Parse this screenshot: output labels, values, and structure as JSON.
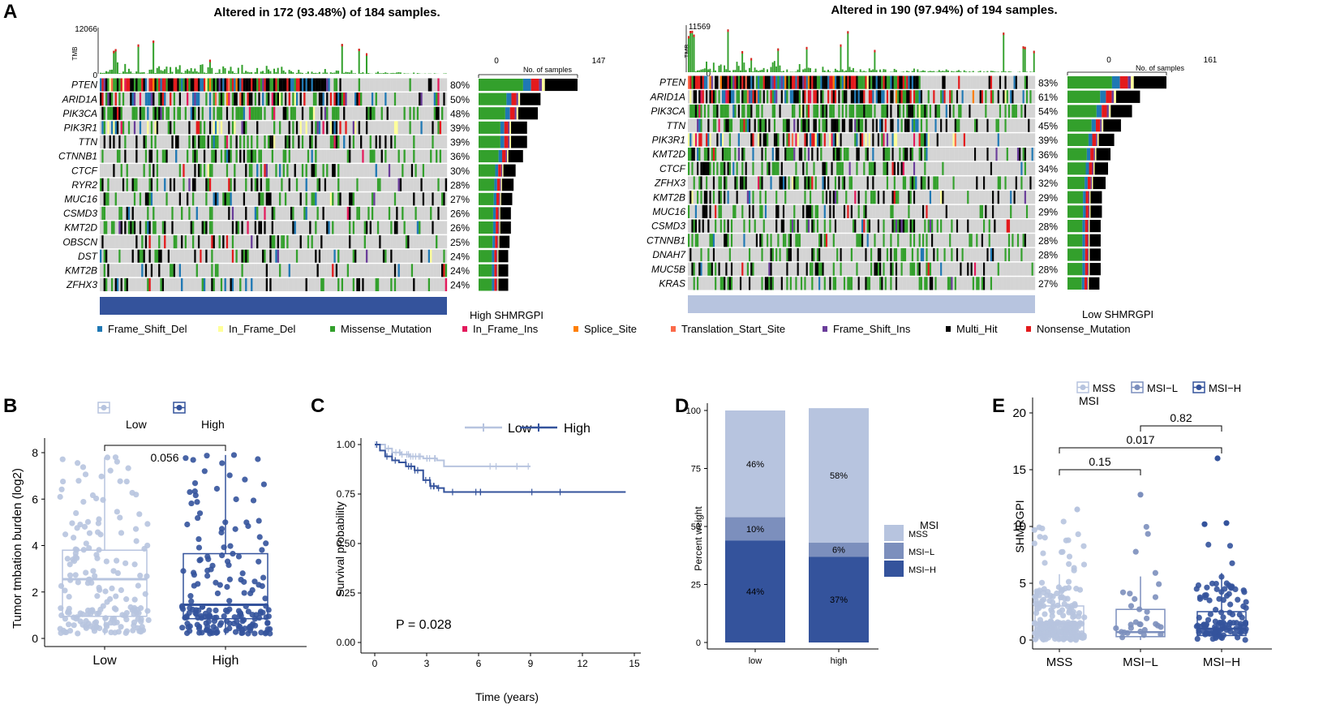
{
  "colors": {
    "Frame_Shift_Del": "#1f78b4",
    "In_Frame_Del": "#ffff99",
    "Missense_Mutation": "#33a02c",
    "In_Frame_Ins": "#e31a5c",
    "Splice_Site": "#ff7f00",
    "Translation_Start_Site": "#fb6a4a",
    "Frame_Shift_Ins": "#6a3d9a",
    "Multi_Hit": "#000000",
    "Nonsense_Mutation": "#e31a1c",
    "low": "#b7c4df",
    "mid": "#7c8fbd",
    "high": "#34539c",
    "oncobg": "#d4d4d4"
  },
  "figure_labels": {
    "A": "A",
    "B": "B",
    "C": "C",
    "D": "D",
    "E": "E"
  },
  "legend_A": [
    "Frame_Shift_Del",
    "In_Frame_Del",
    "Missense_Mutation",
    "In_Frame_Ins",
    "Splice_Site",
    "Translation_Start_Site",
    "Frame_Shift_Ins",
    "Multi_Hit",
    "Nonsense_Mutation"
  ],
  "chart_data": [
    {
      "type": "oncoplot",
      "id": "A-left",
      "title": "Altered in 172 (93.48%) of 184 samples.",
      "tmb_label": "TMB",
      "tmb_max": 12066,
      "tmb_ticks": [
        "12066",
        "0"
      ],
      "samples_label": "No. of samples",
      "samples_axis": [
        0,
        147
      ],
      "group_label": "High SHMRGPI",
      "n_samples": 184,
      "genes": [
        "PTEN",
        "ARID1A",
        "PIK3CA",
        "PIK3R1",
        "TTN",
        "CTNNB1",
        "CTCF",
        "RYR2",
        "MUC16",
        "CSMD3",
        "KMT2D",
        "OBSCN",
        "DST",
        "KMT2B",
        "ZFHX3"
      ],
      "percents": [
        "80%",
        "50%",
        "48%",
        "39%",
        "39%",
        "36%",
        "30%",
        "28%",
        "27%",
        "26%",
        "26%",
        "25%",
        "24%",
        "24%",
        "24%"
      ],
      "counts": [
        147,
        92,
        88,
        72,
        72,
        66,
        55,
        52,
        50,
        48,
        48,
        46,
        44,
        44,
        44
      ]
    },
    {
      "type": "oncoplot",
      "id": "A-right",
      "title": "Altered in 190 (97.94%) of 194 samples.",
      "tmb_label": "TMB",
      "tmb_max": 11569,
      "tmb_ticks": [
        "11569",
        "0"
      ],
      "samples_label": "No. of samples",
      "samples_axis": [
        0,
        161
      ],
      "group_label": "Low SHMRGPI",
      "n_samples": 194,
      "genes": [
        "PTEN",
        "ARID1A",
        "PIK3CA",
        "TTN",
        "PIK3R1",
        "KMT2D",
        "CTCF",
        "ZFHX3",
        "KMT2B",
        "MUC16",
        "CSMD3",
        "CTNNB1",
        "DNAH7",
        "MUC5B",
        "KRAS"
      ],
      "percents": [
        "83%",
        "61%",
        "54%",
        "45%",
        "39%",
        "36%",
        "34%",
        "32%",
        "29%",
        "29%",
        "28%",
        "28%",
        "28%",
        "28%",
        "27%"
      ],
      "counts": [
        161,
        118,
        105,
        87,
        76,
        70,
        66,
        62,
        56,
        56,
        54,
        54,
        54,
        54,
        52
      ]
    },
    {
      "type": "box",
      "id": "B",
      "ylabel": "Tumor tmbation burden (log2)",
      "ylim": [
        0,
        8
      ],
      "yticks": [
        "0",
        "2",
        "4",
        "6",
        "8"
      ],
      "categories": [
        "Low",
        "High"
      ],
      "legend": [
        "Low",
        "High"
      ],
      "stats": [
        {
          "name": "Low",
          "q1": 0.95,
          "median": 2.55,
          "q3": 3.8,
          "whisk_lo": 0.15,
          "whisk_hi": 7.8
        },
        {
          "name": "High",
          "q1": 0.85,
          "median": 1.45,
          "q3": 3.65,
          "whisk_lo": 0.15,
          "whisk_hi": 7.9
        }
      ],
      "p_value": "0.056"
    },
    {
      "type": "line",
      "id": "C",
      "subtype": "kaplan-meier",
      "xlabel": "Time (years)",
      "ylabel": "Survival probability",
      "xlim": [
        0,
        15
      ],
      "ylim": [
        0,
        1
      ],
      "xticks": [
        "0",
        "3",
        "6",
        "9",
        "12",
        "15"
      ],
      "yticks": [
        "0.00",
        "0.25",
        "0.50",
        "0.75",
        "1.00"
      ],
      "legend": [
        "Low",
        "High"
      ],
      "series": [
        {
          "name": "Low",
          "x": [
            0,
            0.6,
            1.0,
            1.5,
            2.0,
            2.8,
            3.6,
            4.0,
            9.0
          ],
          "y": [
            1.0,
            0.98,
            0.96,
            0.95,
            0.94,
            0.93,
            0.92,
            0.89,
            0.89
          ]
        },
        {
          "name": "High",
          "x": [
            0,
            0.3,
            0.6,
            1.0,
            1.4,
            1.8,
            2.3,
            2.8,
            3.2,
            3.6,
            4.0,
            14.5
          ],
          "y": [
            1.0,
            0.97,
            0.94,
            0.92,
            0.91,
            0.89,
            0.87,
            0.82,
            0.79,
            0.78,
            0.76,
            0.76
          ]
        }
      ],
      "p_value": "P = 0.028"
    },
    {
      "type": "bar",
      "id": "D",
      "stacked": true,
      "ylabel": "Percent weight",
      "ylim": [
        0,
        100
      ],
      "yticks": [
        "0",
        "25",
        "50",
        "75",
        "100"
      ],
      "categories": [
        "low",
        "high"
      ],
      "legend_title": "MSI",
      "series": [
        {
          "name": "MSI-H",
          "values": [
            44,
            37
          ],
          "labels": [
            "44%",
            "37%"
          ]
        },
        {
          "name": "MSI-L",
          "values": [
            10,
            6
          ],
          "labels": [
            "10%",
            "6%"
          ]
        },
        {
          "name": "MSS",
          "values": [
            46,
            58
          ],
          "labels": [
            "46%",
            "58%"
          ]
        }
      ],
      "legend": [
        "MSS",
        "MSI−L",
        "MSI−H"
      ]
    },
    {
      "type": "box",
      "id": "E",
      "ylabel": "SHMRGPI",
      "ylim": [
        0,
        20
      ],
      "yticks": [
        "0",
        "5",
        "10",
        "15",
        "20"
      ],
      "categories": [
        "MSS",
        "MSI−L",
        "MSI−H"
      ],
      "legend_title": "MSI",
      "legend": [
        "MSS",
        "MSI−L",
        "MSI−H"
      ],
      "stats": [
        {
          "name": "MSS",
          "q1": 0.5,
          "median": 1.5,
          "q3": 3.0,
          "whisk_lo": 0.0,
          "whisk_hi": 5.8
        },
        {
          "name": "MSI-L",
          "q1": 0.3,
          "median": 0.7,
          "q3": 2.7,
          "whisk_lo": 0.0,
          "whisk_hi": 5.6
        },
        {
          "name": "MSI-H",
          "q1": 0.4,
          "median": 1.0,
          "q3": 2.5,
          "whisk_lo": 0.0,
          "whisk_hi": 5.9
        }
      ],
      "comparisons": [
        {
          "a": "MSS",
          "b": "MSI-L",
          "p": "0.15"
        },
        {
          "a": "MSS",
          "b": "MSI-H",
          "p": "0.017"
        },
        {
          "a": "MSI-L",
          "b": "MSI-H",
          "p": "0.82"
        }
      ]
    }
  ]
}
